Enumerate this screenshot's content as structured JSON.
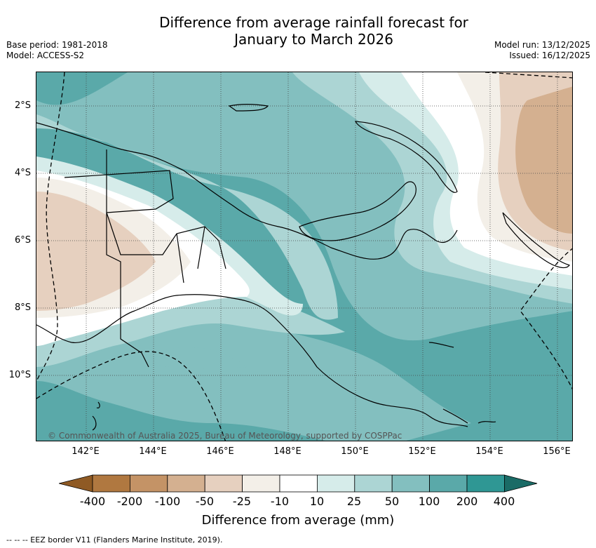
{
  "title_line1": "Difference from average rainfall forecast for",
  "title_line2": "January to March 2026",
  "base_period": "Base period: 1981-2018",
  "model": "Model: ACCESS-S2",
  "model_run": "Model run: 13/12/2025",
  "issued": "Issued: 16/12/2025",
  "lat_labels": [
    "2°S",
    "4°S",
    "6°S",
    "8°S",
    "10°S"
  ],
  "lon_labels": [
    "142°E",
    "144°E",
    "146°E",
    "148°E",
    "150°E",
    "152°E",
    "154°E",
    "156°E"
  ],
  "credit": "© Commonwealth of Australia 2025, Bureau of Meteorology, supported by COSPPac",
  "colorbar": {
    "label": "Difference from average (mm)",
    "ticks": [
      "-400",
      "-200",
      "-100",
      "-50",
      "-25",
      "-10",
      "10",
      "25",
      "50",
      "100",
      "200",
      "400"
    ],
    "colors": [
      "#8f5a24",
      "#b07840",
      "#c49366",
      "#d4b090",
      "#e6d0bf",
      "#f3efe8",
      "#ffffff",
      "#d6ecea",
      "#acd5d4",
      "#83bfbf",
      "#5aa9a9",
      "#2f9794",
      "#1a6b66"
    ]
  },
  "eez_note": "--  --  -- EEZ border V11 (Flanders Marine Institute, 2019)."
}
